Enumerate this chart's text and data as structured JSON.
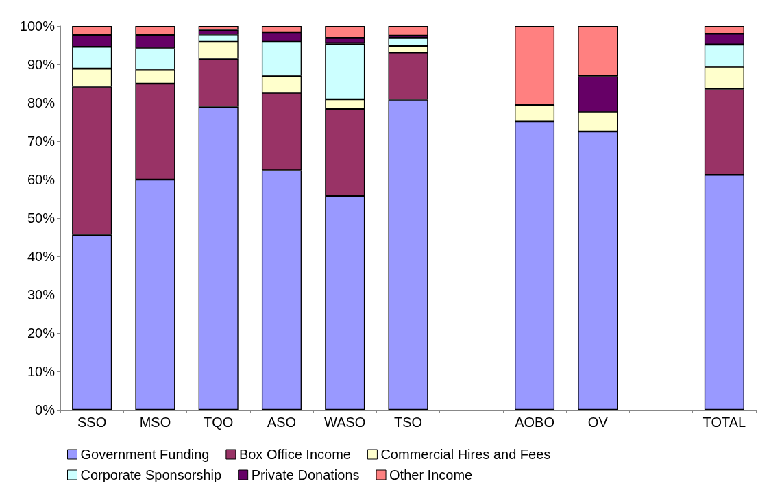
{
  "chart_data": {
    "type": "bar",
    "stacked": true,
    "categories": [
      "SSO",
      "MSO",
      "TQO",
      "ASO",
      "WASO",
      "TSO",
      null,
      "AOBO",
      "OV",
      null,
      "TOTAL"
    ],
    "series": [
      {
        "name": "Government Funding",
        "color": "#9999ff",
        "values": [
          45.6,
          60.0,
          79.0,
          62.4,
          55.7,
          80.8,
          null,
          75.2,
          72.5,
          null,
          61.2
        ]
      },
      {
        "name": "Box Office Income",
        "color": "#993366",
        "values": [
          38.6,
          25.0,
          12.5,
          20.2,
          22.7,
          12.2,
          null,
          0,
          0,
          null,
          22.3
        ]
      },
      {
        "name": "Commercial Hires and Fees",
        "color": "#ffffcc",
        "values": [
          4.7,
          3.7,
          4.4,
          4.4,
          2.5,
          1.8,
          null,
          4.2,
          5.1,
          null,
          5.9
        ]
      },
      {
        "name": "Corporate Sponsorship",
        "color": "#ccffff",
        "values": [
          5.7,
          5.5,
          1.9,
          8.9,
          14.5,
          2.1,
          null,
          0,
          0,
          null,
          5.8
        ]
      },
      {
        "name": "Private Donations",
        "color": "#660066",
        "values": [
          3.1,
          3.5,
          1.2,
          2.5,
          1.5,
          0.6,
          null,
          0,
          9.3,
          null,
          2.8
        ]
      },
      {
        "name": "Other Income",
        "color": "#ff8080",
        "values": [
          2.3,
          2.3,
          1.0,
          1.6,
          3.1,
          2.5,
          null,
          20.6,
          13.1,
          null,
          2.0
        ]
      }
    ],
    "ylim": [
      0,
      100
    ],
    "yticks": [
      {
        "value": 0,
        "label": "0%"
      },
      {
        "value": 10,
        "label": "10%"
      },
      {
        "value": 20,
        "label": "20%"
      },
      {
        "value": 30,
        "label": "30%"
      },
      {
        "value": 40,
        "label": "40%"
      },
      {
        "value": 50,
        "label": "50%"
      },
      {
        "value": 60,
        "label": "60%"
      },
      {
        "value": 70,
        "label": "70%"
      },
      {
        "value": 80,
        "label": "80%"
      },
      {
        "value": 90,
        "label": "90%"
      },
      {
        "value": 100,
        "label": "100%"
      }
    ],
    "grid": false,
    "legend": "bottom"
  }
}
